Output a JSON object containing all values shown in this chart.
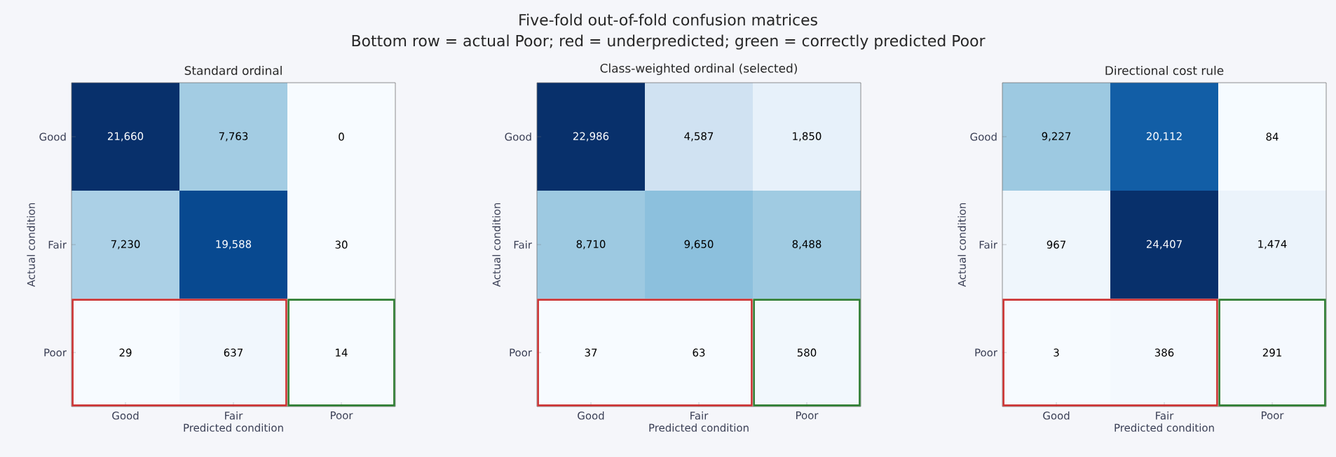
{
  "chart_data": [
    {
      "type": "other",
      "title": "Five-fold out-of-fold confusion matrices",
      "subtitle": "Bottom row = actual Poor; red = underpredicted; green = correctly predicted Poor"
    },
    {
      "type": "heatmap",
      "title": "Standard ordinal",
      "xlabel": "Predicted condition",
      "ylabel": "Actual condition",
      "categories": [
        "Good",
        "Fair",
        "Poor"
      ],
      "y_categories": [
        "Good",
        "Fair",
        "Poor"
      ],
      "cells": [
        [
          21660,
          7763,
          0
        ],
        [
          7230,
          19588,
          30
        ],
        [
          29,
          637,
          14
        ]
      ],
      "cell_labels": [
        [
          "21,660",
          "7,763",
          "0"
        ],
        [
          "7,230",
          "19,588",
          "30"
        ],
        [
          "29",
          "637",
          "14"
        ]
      ]
    },
    {
      "type": "heatmap",
      "title": "Class-weighted ordinal (selected)",
      "xlabel": "Predicted condition",
      "ylabel": "Actual condition",
      "categories": [
        "Good",
        "Fair",
        "Poor"
      ],
      "y_categories": [
        "Good",
        "Fair",
        "Poor"
      ],
      "cells": [
        [
          22986,
          4587,
          1850
        ],
        [
          8710,
          9650,
          8488
        ],
        [
          37,
          63,
          580
        ]
      ],
      "cell_labels": [
        [
          "22,986",
          "4,587",
          "1,850"
        ],
        [
          "8,710",
          "9,650",
          "8,488"
        ],
        [
          "37",
          "63",
          "580"
        ]
      ]
    },
    {
      "type": "heatmap",
      "title": "Directional cost rule",
      "xlabel": "Predicted condition",
      "ylabel": "Actual condition",
      "categories": [
        "Good",
        "Fair",
        "Poor"
      ],
      "y_categories": [
        "Good",
        "Fair",
        "Poor"
      ],
      "cells": [
        [
          9227,
          20112,
          84
        ],
        [
          967,
          24407,
          1474
        ],
        [
          3,
          386,
          291
        ]
      ],
      "cell_labels": [
        [
          "9,227",
          "20,112",
          "84"
        ],
        [
          "967",
          "24,407",
          "1,474"
        ],
        [
          "3",
          "386",
          "291"
        ]
      ]
    }
  ]
}
